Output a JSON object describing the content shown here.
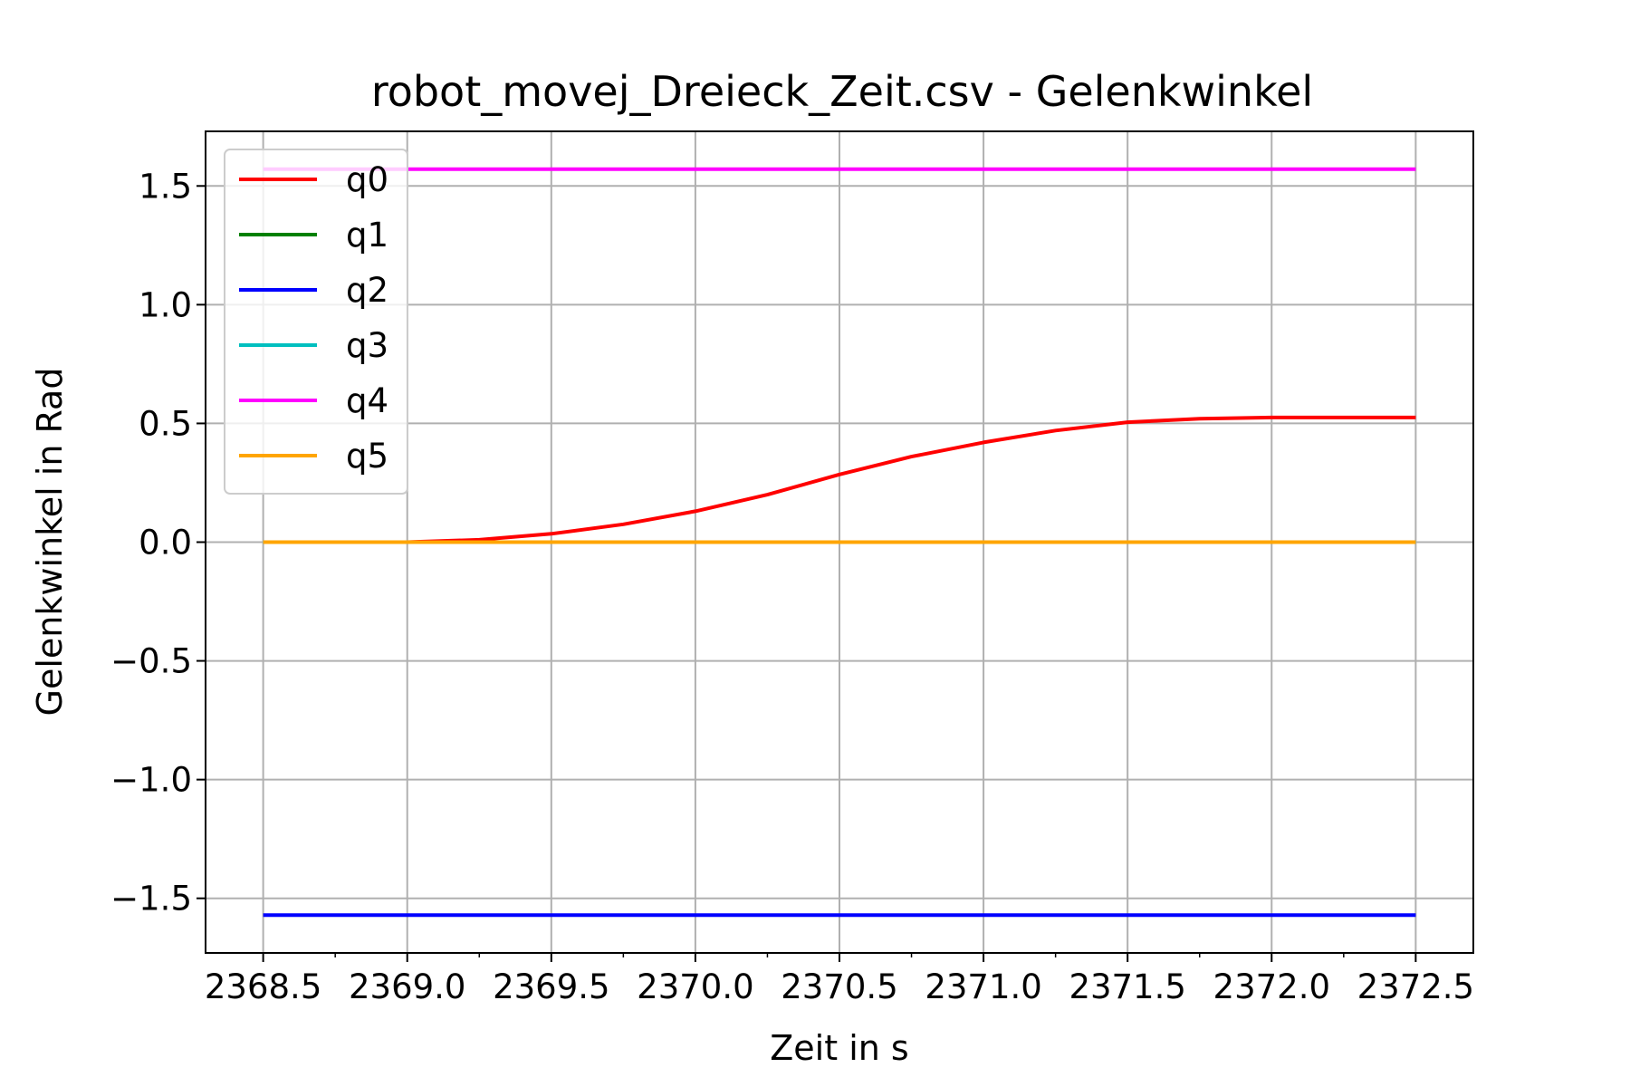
{
  "chart_data": {
    "type": "line",
    "title": "robot_movej_Dreieck_Zeit.csv - Gelenkwinkel",
    "xlabel": "Zeit in s",
    "ylabel": "Gelenkwinkel in Rad",
    "xlim": [
      2368.3,
      2372.7
    ],
    "ylim": [
      -1.73,
      1.73
    ],
    "xticks": [
      2368.5,
      2369.0,
      2369.5,
      2370.0,
      2370.5,
      2371.0,
      2371.5,
      2372.0,
      2372.5
    ],
    "xtick_labels": [
      "2368.5",
      "2369.0",
      "2369.5",
      "2370.0",
      "2370.5",
      "2371.0",
      "2371.5",
      "2372.0",
      "2372.5"
    ],
    "yticks": [
      1.5,
      1.0,
      0.5,
      0.0,
      -0.5,
      -1.0,
      -1.5
    ],
    "ytick_labels": [
      "1.5",
      "1.0",
      "0.5",
      "0.0",
      "−0.5",
      "−1.0",
      "−1.5"
    ],
    "grid": true,
    "legend_position": "upper-left",
    "series": [
      {
        "name": "q0",
        "color": "#ff0000",
        "x": [
          2368.5,
          2369.0,
          2369.25,
          2369.5,
          2369.75,
          2370.0,
          2370.25,
          2370.5,
          2370.75,
          2371.0,
          2371.25,
          2371.5,
          2371.75,
          2372.0,
          2372.25,
          2372.5
        ],
        "y": [
          0.0,
          0.0,
          0.01,
          0.035,
          0.075,
          0.13,
          0.2,
          0.285,
          0.36,
          0.42,
          0.47,
          0.505,
          0.52,
          0.525,
          0.525,
          0.525
        ]
      },
      {
        "name": "q1",
        "color": "#008000",
        "x": [
          2368.5,
          2372.5
        ],
        "y": [
          0.0,
          0.0
        ]
      },
      {
        "name": "q2",
        "color": "#0000ff",
        "x": [
          2368.5,
          2372.5
        ],
        "y": [
          -1.571,
          -1.571
        ]
      },
      {
        "name": "q3",
        "color": "#00bfbf",
        "x": [
          2368.5,
          2372.5
        ],
        "y": [
          0.0,
          0.0
        ]
      },
      {
        "name": "q4",
        "color": "#ff00ff",
        "x": [
          2368.5,
          2372.5
        ],
        "y": [
          1.571,
          1.571
        ]
      },
      {
        "name": "q5",
        "color": "#ffa500",
        "x": [
          2368.5,
          2372.5
        ],
        "y": [
          0.0,
          0.0
        ]
      }
    ]
  }
}
